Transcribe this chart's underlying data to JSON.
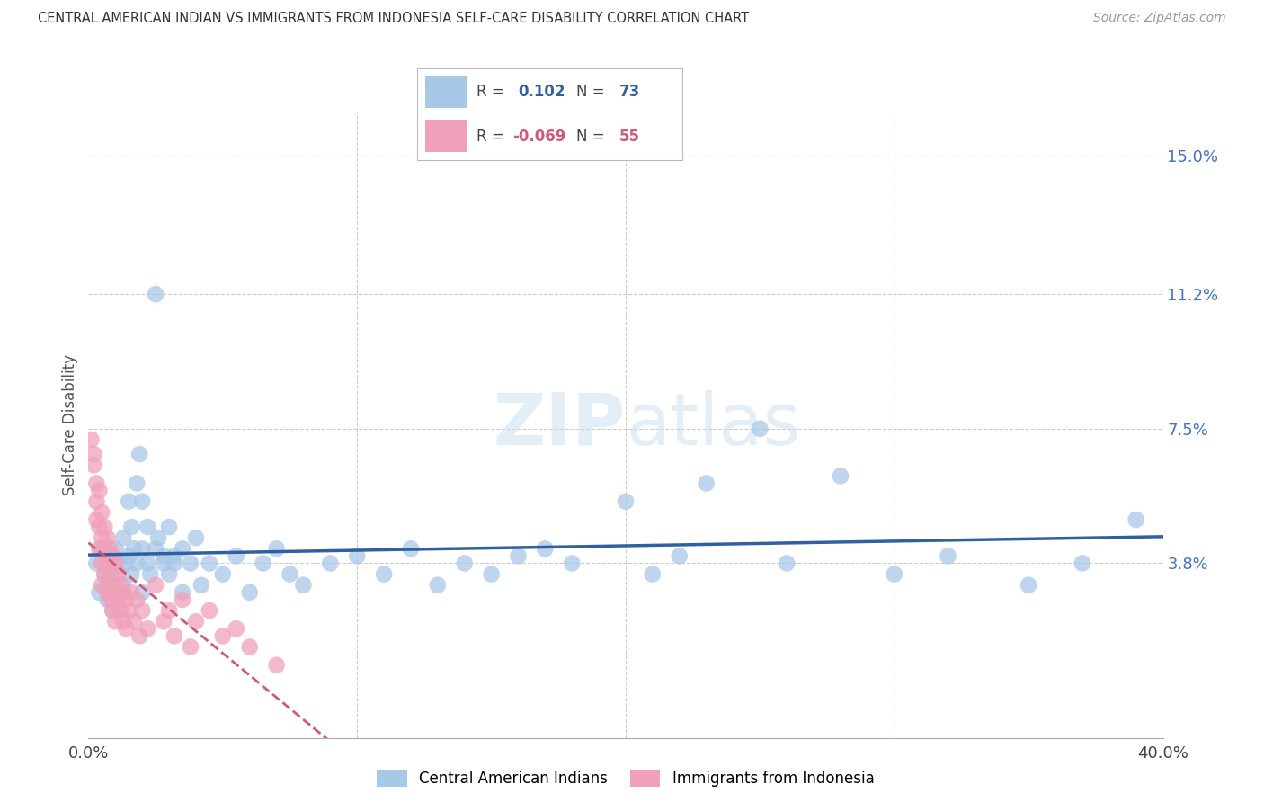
{
  "title": "CENTRAL AMERICAN INDIAN VS IMMIGRANTS FROM INDONESIA SELF-CARE DISABILITY CORRELATION CHART",
  "source": "Source: ZipAtlas.com",
  "ylabel": "Self-Care Disability",
  "ytick_labels": [
    "15.0%",
    "11.2%",
    "7.5%",
    "3.8%"
  ],
  "ytick_values": [
    0.15,
    0.112,
    0.075,
    0.038
  ],
  "xlim": [
    0.0,
    0.4
  ],
  "ylim": [
    -0.01,
    0.162
  ],
  "legend": {
    "R1": "0.102",
    "N1": "73",
    "R2": "-0.069",
    "N2": "55"
  },
  "blue_color": "#a8c8e8",
  "blue_line_color": "#3060a0",
  "pink_color": "#f0a0b8",
  "pink_line_color": "#d05878",
  "watermark": "ZIPatlas",
  "ytick_color": "#4472c4",
  "gridline_color": "#cccccc",
  "blue_scatter": [
    [
      0.003,
      0.038
    ],
    [
      0.004,
      0.03
    ],
    [
      0.005,
      0.042
    ],
    [
      0.006,
      0.035
    ],
    [
      0.007,
      0.028
    ],
    [
      0.007,
      0.032
    ],
    [
      0.008,
      0.04
    ],
    [
      0.009,
      0.025
    ],
    [
      0.01,
      0.035
    ],
    [
      0.01,
      0.042
    ],
    [
      0.011,
      0.038
    ],
    [
      0.012,
      0.03
    ],
    [
      0.013,
      0.045
    ],
    [
      0.013,
      0.032
    ],
    [
      0.014,
      0.038
    ],
    [
      0.015,
      0.055
    ],
    [
      0.015,
      0.04
    ],
    [
      0.016,
      0.048
    ],
    [
      0.016,
      0.035
    ],
    [
      0.017,
      0.042
    ],
    [
      0.018,
      0.038
    ],
    [
      0.018,
      0.06
    ],
    [
      0.019,
      0.068
    ],
    [
      0.02,
      0.055
    ],
    [
      0.02,
      0.042
    ],
    [
      0.02,
      0.03
    ],
    [
      0.022,
      0.048
    ],
    [
      0.022,
      0.038
    ],
    [
      0.023,
      0.035
    ],
    [
      0.025,
      0.112
    ],
    [
      0.025,
      0.042
    ],
    [
      0.026,
      0.045
    ],
    [
      0.028,
      0.04
    ],
    [
      0.028,
      0.038
    ],
    [
      0.03,
      0.048
    ],
    [
      0.03,
      0.035
    ],
    [
      0.032,
      0.04
    ],
    [
      0.032,
      0.038
    ],
    [
      0.035,
      0.042
    ],
    [
      0.035,
      0.03
    ],
    [
      0.038,
      0.038
    ],
    [
      0.04,
      0.045
    ],
    [
      0.042,
      0.032
    ],
    [
      0.045,
      0.038
    ],
    [
      0.05,
      0.035
    ],
    [
      0.055,
      0.04
    ],
    [
      0.06,
      0.03
    ],
    [
      0.065,
      0.038
    ],
    [
      0.07,
      0.042
    ],
    [
      0.075,
      0.035
    ],
    [
      0.08,
      0.032
    ],
    [
      0.09,
      0.038
    ],
    [
      0.1,
      0.04
    ],
    [
      0.11,
      0.035
    ],
    [
      0.12,
      0.042
    ],
    [
      0.13,
      0.032
    ],
    [
      0.14,
      0.038
    ],
    [
      0.15,
      0.035
    ],
    [
      0.16,
      0.04
    ],
    [
      0.17,
      0.042
    ],
    [
      0.18,
      0.038
    ],
    [
      0.2,
      0.055
    ],
    [
      0.21,
      0.035
    ],
    [
      0.22,
      0.04
    ],
    [
      0.23,
      0.06
    ],
    [
      0.25,
      0.075
    ],
    [
      0.26,
      0.038
    ],
    [
      0.28,
      0.062
    ],
    [
      0.3,
      0.035
    ],
    [
      0.32,
      0.04
    ],
    [
      0.35,
      0.032
    ],
    [
      0.37,
      0.038
    ],
    [
      0.39,
      0.05
    ]
  ],
  "pink_scatter": [
    [
      0.001,
      0.072
    ],
    [
      0.002,
      0.068
    ],
    [
      0.002,
      0.065
    ],
    [
      0.003,
      0.06
    ],
    [
      0.003,
      0.055
    ],
    [
      0.003,
      0.05
    ],
    [
      0.004,
      0.058
    ],
    [
      0.004,
      0.048
    ],
    [
      0.004,
      0.042
    ],
    [
      0.005,
      0.052
    ],
    [
      0.005,
      0.045
    ],
    [
      0.005,
      0.038
    ],
    [
      0.005,
      0.032
    ],
    [
      0.006,
      0.048
    ],
    [
      0.006,
      0.042
    ],
    [
      0.006,
      0.035
    ],
    [
      0.007,
      0.045
    ],
    [
      0.007,
      0.038
    ],
    [
      0.007,
      0.03
    ],
    [
      0.008,
      0.042
    ],
    [
      0.008,
      0.035
    ],
    [
      0.008,
      0.028
    ],
    [
      0.009,
      0.04
    ],
    [
      0.009,
      0.032
    ],
    [
      0.009,
      0.025
    ],
    [
      0.01,
      0.038
    ],
    [
      0.01,
      0.03
    ],
    [
      0.01,
      0.022
    ],
    [
      0.011,
      0.035
    ],
    [
      0.011,
      0.028
    ],
    [
      0.012,
      0.032
    ],
    [
      0.012,
      0.025
    ],
    [
      0.013,
      0.03
    ],
    [
      0.013,
      0.022
    ],
    [
      0.014,
      0.028
    ],
    [
      0.014,
      0.02
    ],
    [
      0.015,
      0.025
    ],
    [
      0.016,
      0.03
    ],
    [
      0.017,
      0.022
    ],
    [
      0.018,
      0.028
    ],
    [
      0.019,
      0.018
    ],
    [
      0.02,
      0.025
    ],
    [
      0.022,
      0.02
    ],
    [
      0.025,
      0.032
    ],
    [
      0.028,
      0.022
    ],
    [
      0.03,
      0.025
    ],
    [
      0.032,
      0.018
    ],
    [
      0.035,
      0.028
    ],
    [
      0.038,
      0.015
    ],
    [
      0.04,
      0.022
    ],
    [
      0.045,
      0.025
    ],
    [
      0.05,
      0.018
    ],
    [
      0.055,
      0.02
    ],
    [
      0.06,
      0.015
    ],
    [
      0.07,
      0.01
    ]
  ]
}
